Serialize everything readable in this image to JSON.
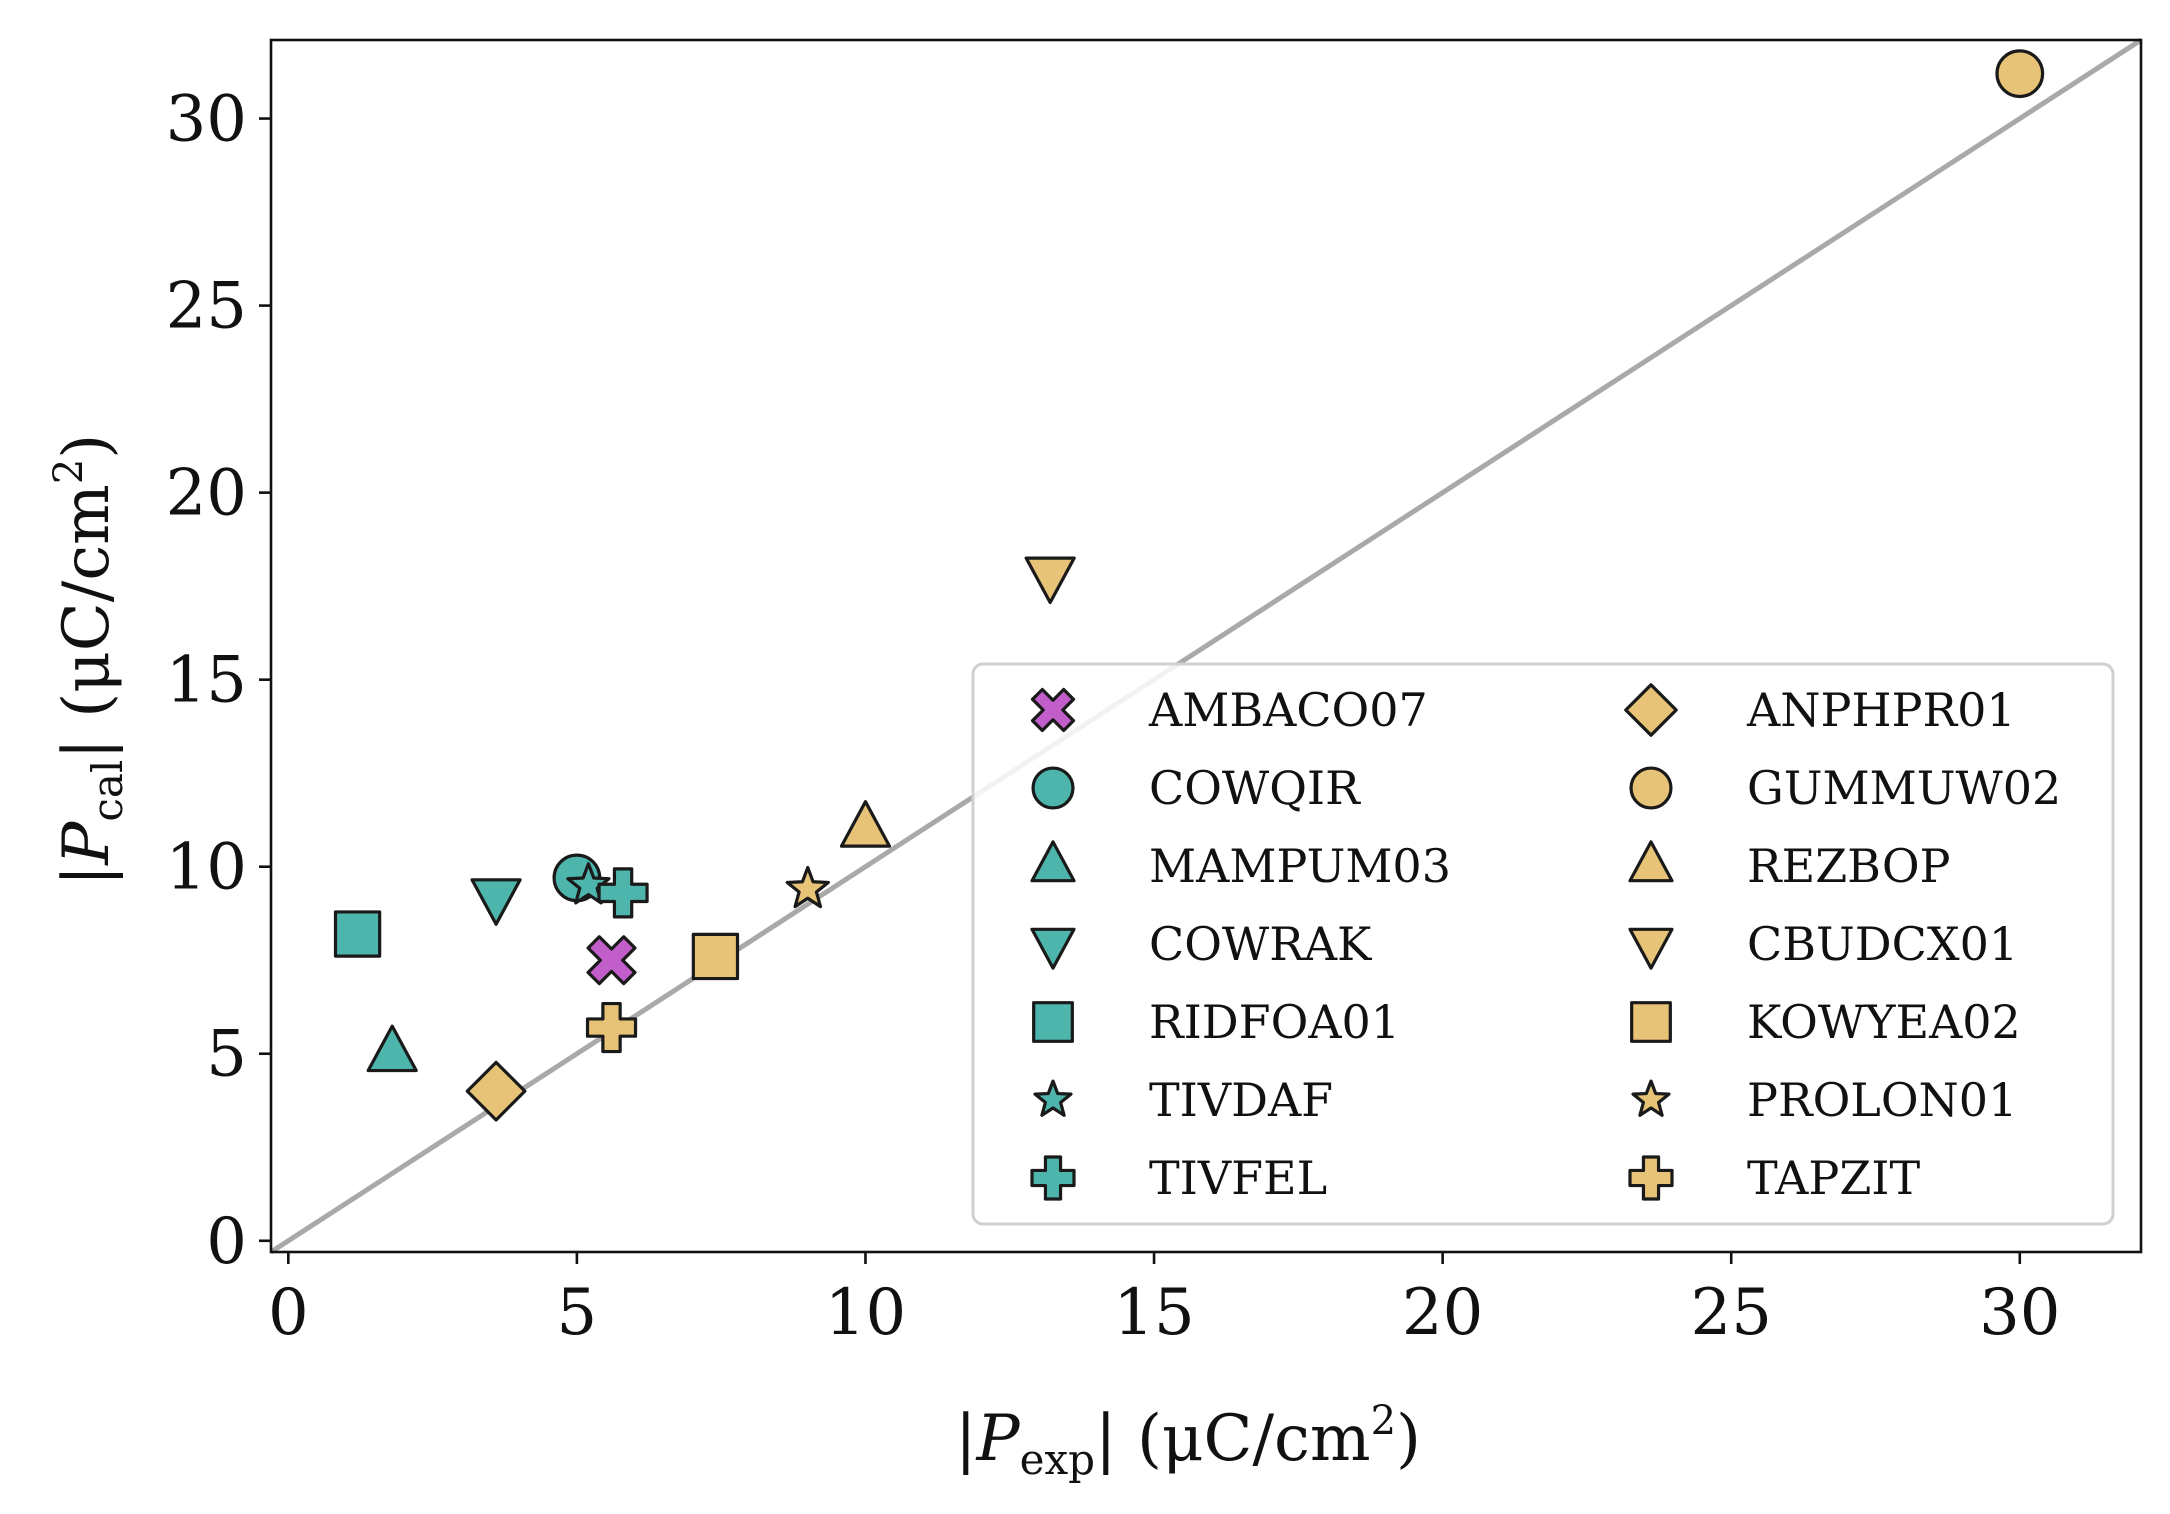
{
  "chart_data": {
    "type": "scatter",
    "xlabel": {
      "pre": "|",
      "var": "P",
      "sub": "exp",
      "post": "| (μC/cm",
      "sup": "2",
      "close": ")"
    },
    "ylabel": {
      "pre": "|",
      "var": "P",
      "sub": "cal",
      "post": "| (μC/cm",
      "sup": "2",
      "close": ")"
    },
    "xlim": [
      -0.3,
      32.1
    ],
    "ylim": [
      -0.3,
      32.1
    ],
    "xticks": [
      0,
      5,
      10,
      15,
      20,
      25,
      30
    ],
    "yticks": [
      0,
      5,
      10,
      15,
      20,
      25,
      30
    ],
    "xtick_labels": [
      "0",
      "5",
      "10",
      "15",
      "20",
      "25",
      "30"
    ],
    "ytick_labels": [
      "0",
      "5",
      "10",
      "15",
      "20",
      "25",
      "30"
    ],
    "reference_line": {
      "type": "y=x",
      "color": "#a9a9a9"
    },
    "legend": {
      "placement": "lower-right",
      "columns": 2
    },
    "colors": {
      "purple": "#c25ec9",
      "teal": "#4db5ab",
      "gold": "#e7c377",
      "edge": "#1a1a1a"
    },
    "series": [
      {
        "name": "AMBACO07",
        "marker": "x-filled",
        "color": "#c25ec9",
        "x": 5.6,
        "y": 7.5
      },
      {
        "name": "COWQIR",
        "marker": "circle",
        "color": "#4db5ab",
        "x": 5.0,
        "y": 9.7
      },
      {
        "name": "MAMPUM03",
        "marker": "triangle-up",
        "color": "#4db5ab",
        "x": 1.8,
        "y": 5.0
      },
      {
        "name": "COWRAK",
        "marker": "triangle-down",
        "color": "#4db5ab",
        "x": 3.6,
        "y": 9.2
      },
      {
        "name": "RIDFOA01",
        "marker": "square",
        "color": "#4db5ab",
        "x": 1.2,
        "y": 8.2
      },
      {
        "name": "TIVDAF",
        "marker": "star",
        "color": "#4db5ab",
        "x": 5.2,
        "y": 9.5
      },
      {
        "name": "TIVFEL",
        "marker": "plus-filled",
        "color": "#4db5ab",
        "x": 5.8,
        "y": 9.3
      },
      {
        "name": "ANPHPR01",
        "marker": "diamond",
        "color": "#e7c377",
        "x": 3.6,
        "y": 4.0
      },
      {
        "name": "GUMMUW02",
        "marker": "circle",
        "color": "#e7c377",
        "x": 30.0,
        "y": 31.2
      },
      {
        "name": "REZBOP",
        "marker": "triangle-up",
        "color": "#e7c377",
        "x": 10.0,
        "y": 11.0
      },
      {
        "name": "CBUDCX01",
        "marker": "triangle-down",
        "color": "#e7c377",
        "x": 13.2,
        "y": 17.8
      },
      {
        "name": "KOWYEA02",
        "marker": "square",
        "color": "#e7c377",
        "x": 7.4,
        "y": 7.6
      },
      {
        "name": "PROLON01",
        "marker": "star",
        "color": "#e7c377",
        "x": 9.0,
        "y": 9.4
      },
      {
        "name": "TAPZIT",
        "marker": "plus-filled",
        "color": "#e7c377",
        "x": 5.6,
        "y": 5.7
      }
    ]
  }
}
